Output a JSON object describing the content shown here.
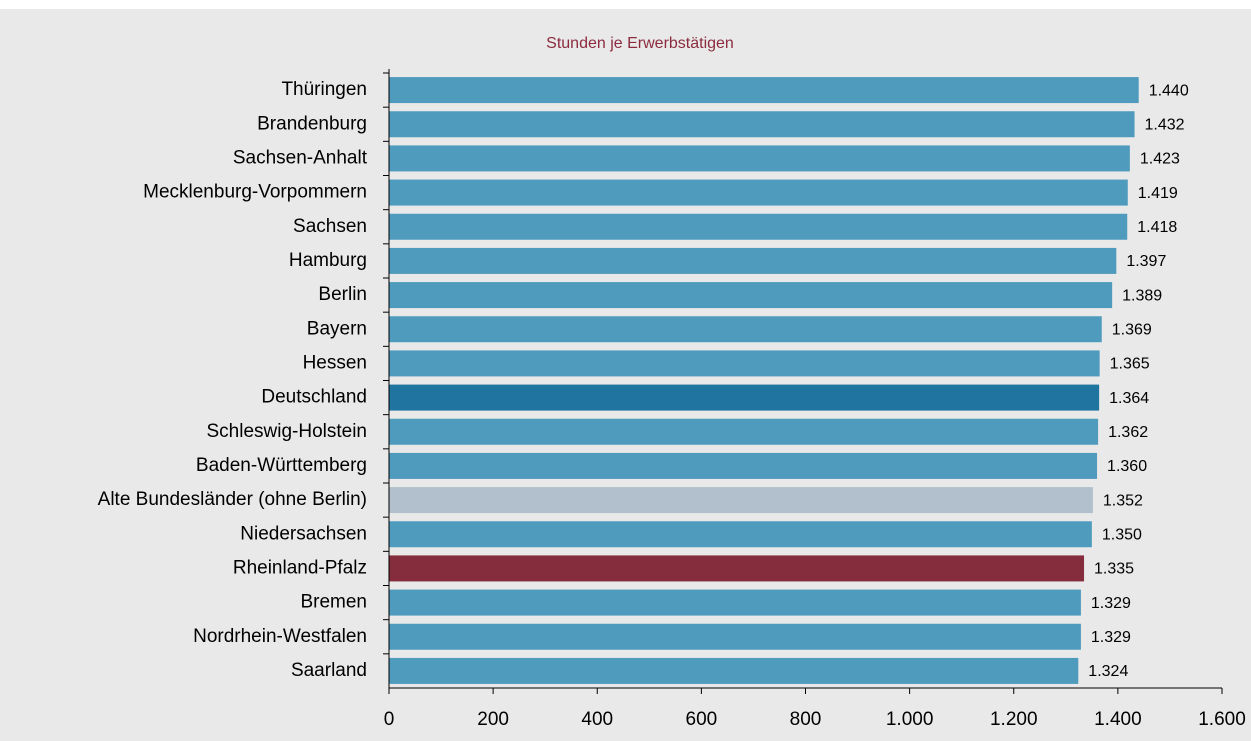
{
  "chart_data": {
    "type": "bar",
    "orientation": "horizontal",
    "title": "Stunden je Erwerbstätigen",
    "categories": [
      "Thüringen",
      "Brandenburg",
      "Sachsen-Anhalt",
      "Mecklenburg-Vorpommern",
      "Sachsen",
      "Hamburg",
      "Berlin",
      "Bayern",
      "Hessen",
      "Deutschland",
      "Schleswig-Holstein",
      "Baden-Württemberg",
      "Alte Bundesländer (ohne Berlin)",
      "Niedersachsen",
      "Rheinland-Pfalz",
      "Bremen",
      "Nordrhein-Westfalen",
      "Saarland"
    ],
    "values": [
      1440,
      1432,
      1423,
      1419,
      1418,
      1397,
      1389,
      1369,
      1365,
      1364,
      1362,
      1360,
      1352,
      1350,
      1335,
      1329,
      1329,
      1324
    ],
    "value_labels": [
      "1.440",
      "1.432",
      "1.423",
      "1.419",
      "1.418",
      "1.397",
      "1.389",
      "1.369",
      "1.365",
      "1.364",
      "1.362",
      "1.360",
      "1.352",
      "1.350",
      "1.335",
      "1.329",
      "1.329",
      "1.324"
    ],
    "colors": [
      "#4f9bbd",
      "#4f9bbd",
      "#4f9bbd",
      "#4f9bbd",
      "#4f9bbd",
      "#4f9bbd",
      "#4f9bbd",
      "#4f9bbd",
      "#4f9bbd",
      "#1f74a0",
      "#4f9bbd",
      "#4f9bbd",
      "#b1c0cc",
      "#4f9bbd",
      "#862d3d",
      "#4f9bbd",
      "#4f9bbd",
      "#4f9bbd"
    ],
    "xlim": [
      0,
      1600
    ],
    "xticks": [
      0,
      200,
      400,
      600,
      800,
      {
        "value": 1000,
        "label": "1.000"
      },
      {
        "value": 1200,
        "label": "1.200"
      },
      {
        "value": 1400,
        "label": "1.400"
      },
      {
        "value": 1600,
        "label": "1.600"
      }
    ]
  }
}
